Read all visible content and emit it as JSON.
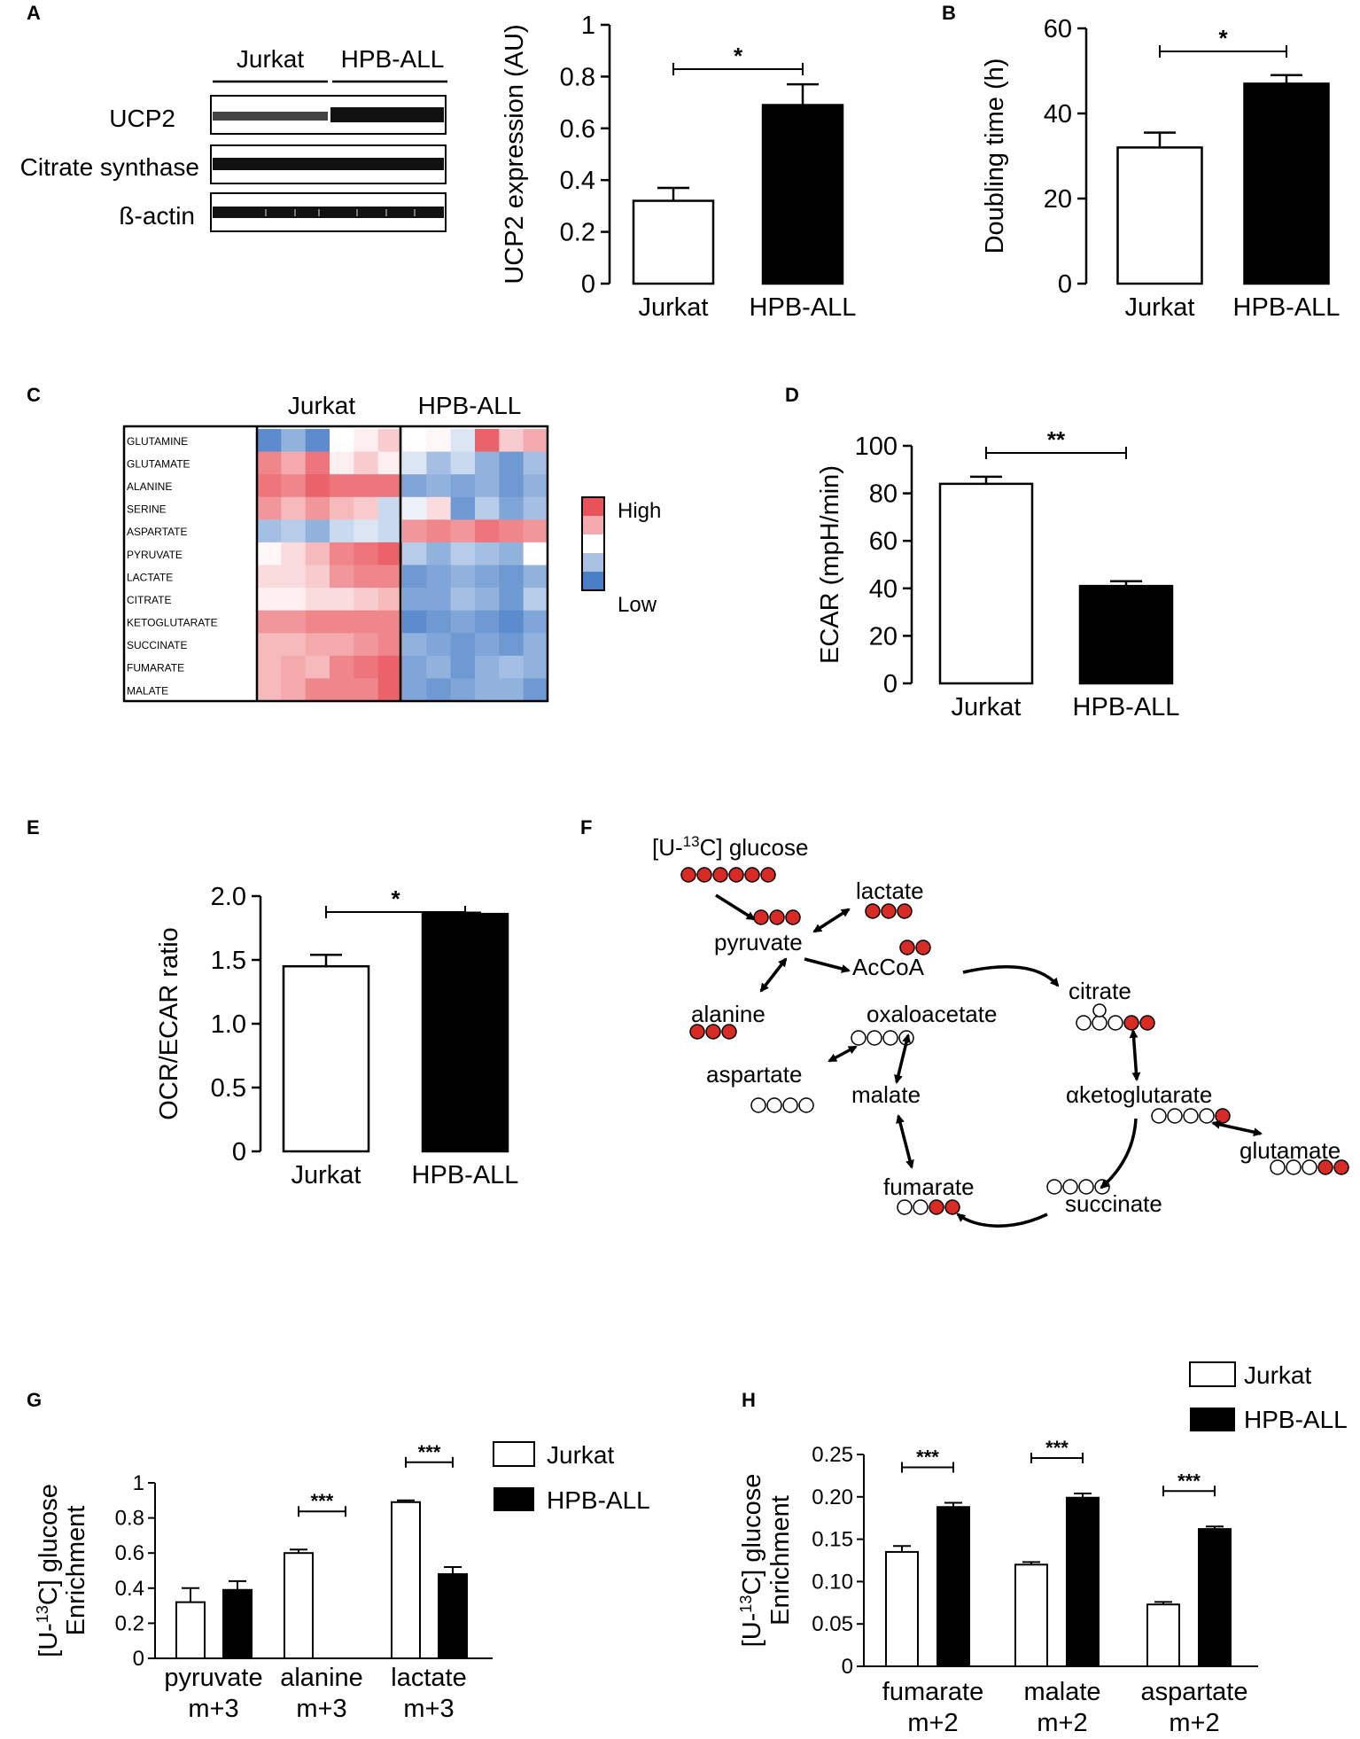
{
  "panels": {
    "A": "A",
    "B": "B",
    "C": "C",
    "D": "D",
    "E": "E",
    "F": "F",
    "G": "G",
    "H": "H"
  },
  "colors": {
    "open_bar": "#ffffff",
    "filled_bar": "#000000",
    "heat_high": "#e8525a",
    "heat_mid": "#ffffff",
    "heat_low": "#4a7fc8"
  },
  "blot": {
    "group_labels": [
      "Jurkat",
      "HPB-ALL"
    ],
    "rows": [
      "UCP2",
      "Citrate synthase",
      "ß-actin"
    ]
  },
  "heatmap_legend": {
    "high": "High",
    "low": "Low"
  },
  "chart_data": [
    {
      "id": "A",
      "type": "bar",
      "categories": [
        "Jurkat",
        "HPB-ALL"
      ],
      "values": [
        0.32,
        0.69
      ],
      "errors": [
        0.05,
        0.08
      ],
      "ylabel": "UCP2 expression (AU)",
      "ylim": [
        0,
        1
      ],
      "yticks": [
        "0",
        "0.2",
        "0.4",
        "0.6",
        "0.8",
        "1"
      ],
      "significance": "*"
    },
    {
      "id": "B",
      "type": "bar",
      "categories": [
        "Jurkat",
        "HPB-ALL"
      ],
      "values": [
        32,
        47
      ],
      "errors": [
        3.5,
        2
      ],
      "ylabel": "Doubling time (h)",
      "ylim": [
        0,
        60
      ],
      "yticks": [
        "0",
        "20",
        "40",
        "60"
      ],
      "significance": "*"
    },
    {
      "id": "C",
      "type": "heatmap",
      "rows": [
        "GLUTAMINE",
        "GLUTAMATE",
        "ALANINE",
        "SERINE",
        "ASPARTATE",
        "PYRUVATE",
        "LACTATE",
        "CITRATE",
        "KETOGLUTARATE",
        "SUCCINATE",
        "FUMARATE",
        "MALATE"
      ],
      "column_groups": [
        "Jurkat",
        "HPB-ALL"
      ],
      "values": [
        [
          -0.9,
          -0.6,
          -0.9,
          0,
          0.1,
          0.3,
          0,
          0.05,
          -0.2,
          0.9,
          0.3,
          0.5
        ],
        [
          0.7,
          0.5,
          0.8,
          0.1,
          0.3,
          0.1,
          -0.2,
          -0.5,
          -0.3,
          -0.6,
          -0.8,
          -0.5
        ],
        [
          0.8,
          0.7,
          0.9,
          0.8,
          0.8,
          0.8,
          -0.7,
          -0.6,
          -0.7,
          -0.6,
          -0.8,
          -0.6
        ],
        [
          0.6,
          0.4,
          0.6,
          0.4,
          0.3,
          -0.3,
          -0.1,
          0.2,
          -0.8,
          -0.4,
          -0.7,
          -0.5
        ],
        [
          -0.5,
          -0.4,
          -0.6,
          -0.3,
          -0.2,
          -0.3,
          0.6,
          0.7,
          0.6,
          0.8,
          0.7,
          0.6
        ],
        [
          0.05,
          0.2,
          0.4,
          0.7,
          0.8,
          0.9,
          -0.4,
          -0.6,
          -0.4,
          -0.5,
          -0.6,
          0.0
        ],
        [
          0.2,
          0.2,
          0.3,
          0.6,
          0.7,
          0.7,
          -0.8,
          -0.7,
          -0.6,
          -0.7,
          -0.8,
          -0.6
        ],
        [
          0.1,
          0.1,
          0.2,
          0.2,
          0.3,
          0.4,
          -0.7,
          -0.7,
          -0.5,
          -0.6,
          -0.8,
          -0.4
        ],
        [
          0.6,
          0.6,
          0.7,
          0.7,
          0.7,
          0.7,
          -0.9,
          -0.8,
          -0.7,
          -0.8,
          -0.9,
          -0.7
        ],
        [
          0.4,
          0.4,
          0.5,
          0.5,
          0.6,
          0.7,
          -0.6,
          -0.7,
          -0.8,
          -0.7,
          -0.8,
          -0.6
        ],
        [
          0.4,
          0.5,
          0.4,
          0.7,
          0.8,
          0.9,
          -0.7,
          -0.6,
          -0.8,
          -0.6,
          -0.5,
          -0.6
        ],
        [
          0.4,
          0.5,
          0.7,
          0.7,
          0.7,
          0.9,
          -0.7,
          -0.8,
          -0.7,
          -0.6,
          -0.6,
          -0.8
        ]
      ]
    },
    {
      "id": "D",
      "type": "bar",
      "categories": [
        "Jurkat",
        "HPB-ALL"
      ],
      "values": [
        84,
        41
      ],
      "errors": [
        3,
        2
      ],
      "ylabel": "ECAR (mpH/min)",
      "ylim": [
        0,
        100
      ],
      "yticks": [
        "0",
        "20",
        "40",
        "60",
        "80",
        "100"
      ],
      "significance": "**"
    },
    {
      "id": "E",
      "type": "bar",
      "categories": [
        "Jurkat",
        "HPB-ALL"
      ],
      "values": [
        1.45,
        1.86
      ],
      "errors": [
        0.09,
        0.01
      ],
      "ylabel": "OCR/ECAR ratio",
      "ylim": [
        0,
        2
      ],
      "yticks": [
        "0",
        "0.5",
        "1.0",
        "1.5",
        "2.0"
      ],
      "significance": "*"
    },
    {
      "id": "G",
      "type": "bar",
      "categories": [
        [
          "pyruvate",
          "m+3"
        ],
        [
          "alanine",
          "m+3"
        ],
        [
          "lactate",
          "m+3"
        ]
      ],
      "series": [
        {
          "name": "Jurkat",
          "values": [
            0.32,
            0.6,
            0.89
          ],
          "errors": [
            0.08,
            0.02,
            0.01
          ]
        },
        {
          "name": "HPB-ALL",
          "values": [
            0.39,
            0.0,
            0.48
          ],
          "errors": [
            0.05,
            0.0,
            0.04
          ]
        }
      ],
      "ylabel_lines": [
        "[U-",
        "13",
        "C] glucose",
        "Enrichment"
      ],
      "ylim": [
        0,
        1
      ],
      "yticks": [
        "0",
        "0.2",
        "0.4",
        "0.6",
        "0.8",
        "1"
      ],
      "significance": [
        "",
        "***",
        "***"
      ]
    },
    {
      "id": "H",
      "type": "bar",
      "categories": [
        [
          "fumarate",
          "m+2"
        ],
        [
          "malate",
          "m+2"
        ],
        [
          "aspartate",
          "m+2"
        ]
      ],
      "series": [
        {
          "name": "Jurkat",
          "values": [
            0.135,
            0.12,
            0.073
          ],
          "errors": [
            0.007,
            0.003,
            0.003
          ]
        },
        {
          "name": "HPB-ALL",
          "values": [
            0.188,
            0.199,
            0.162
          ],
          "errors": [
            0.005,
            0.005,
            0.003
          ]
        }
      ],
      "ylabel_lines": [
        "[U-",
        "13",
        "C] glucose",
        "Enrichment"
      ],
      "ylim": [
        0,
        0.25
      ],
      "yticks": [
        "0",
        "0.05",
        "0.10",
        "0.15",
        "0.20",
        "0.25"
      ],
      "significance": [
        "***",
        "***",
        "***"
      ]
    }
  ],
  "pathway": {
    "glucose_prefix": "[U-",
    "glucose_sup": "13",
    "glucose_suffix": "C] glucose",
    "nodes": {
      "lactate": "lactate",
      "pyruvate": "pyruvate",
      "AcCoA": "AcCoA",
      "alanine": "alanine",
      "oxaloacetate": "oxaloacetate",
      "citrate": "citrate",
      "aspartate": "aspartate",
      "malate": "malate",
      "aketoglutarate": "αketoglutarate",
      "glutamate": "glutamate",
      "fumarate": "fumarate",
      "succinate": "succinate"
    }
  }
}
